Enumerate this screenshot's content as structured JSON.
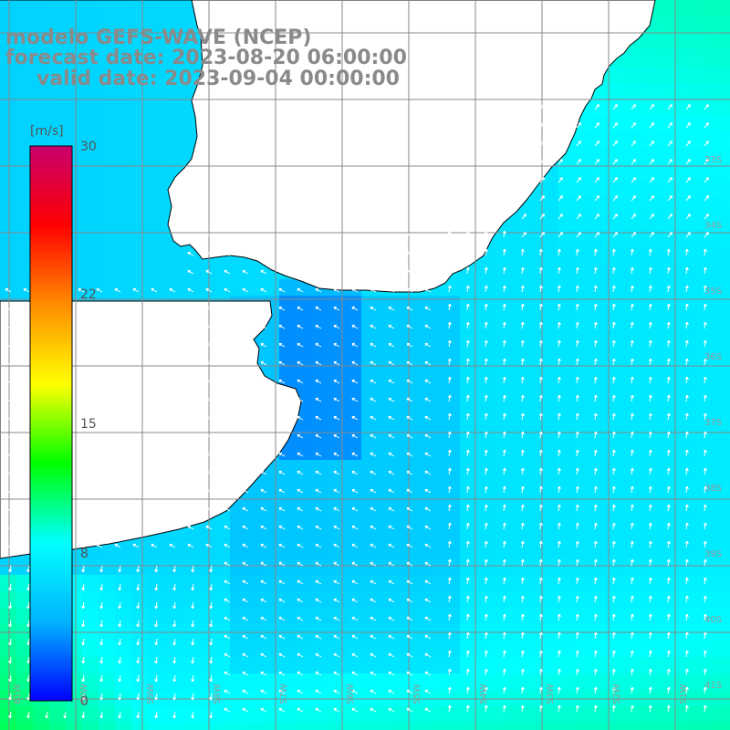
{
  "header": {
    "model_line": "modelo GEFS-WAVE (NCEP)",
    "forecast_line": "forecast date: 2023-08-20 06:00:00",
    "valid_line": "valid date: 2023-09-04 00:00:00"
  },
  "colorbar": {
    "unit": "[m/s]",
    "min": 0,
    "max": 30,
    "tick_labels": [
      "30",
      "22",
      "15",
      "8",
      "0"
    ],
    "tick_values": [
      30,
      22,
      15,
      8,
      0
    ],
    "stops": [
      "#0000ff",
      "#00b4ff",
      "#00ffff",
      "#00ff00",
      "#ffff00",
      "#ff8c00",
      "#ff0000",
      "#c8006e"
    ]
  },
  "map": {
    "parameter": "wind speed and direction",
    "lon_range": [
      -62,
      -51
    ],
    "lat_range": [
      -41.5,
      -31
    ],
    "grid": true,
    "lat_labels": [
      "33S",
      "34S",
      "35S",
      "36S",
      "37S",
      "38S",
      "39S",
      "40S",
      "41S"
    ],
    "lon_labels": [
      "61W",
      "60W",
      "59W",
      "58W",
      "57W",
      "56W",
      "55W",
      "54W",
      "53W",
      "52W",
      "51W"
    ],
    "land_color": "#ffffff",
    "coast_color": "#000000",
    "grid_color": "#888888",
    "arrow_color": "#ffffff"
  }
}
